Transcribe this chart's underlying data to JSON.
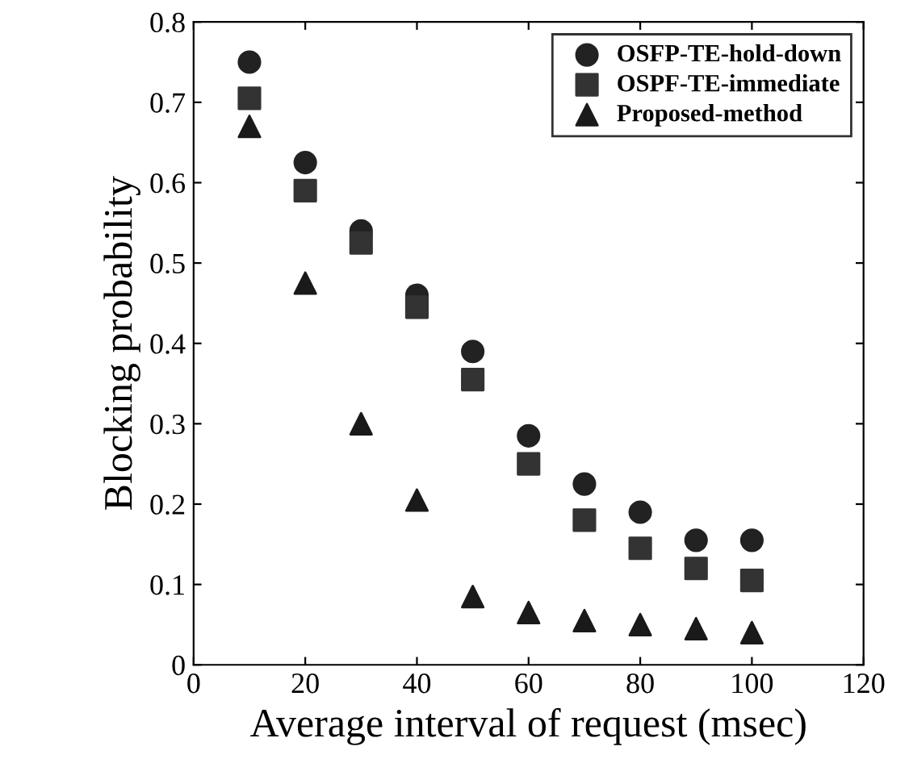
{
  "chart_data": {
    "type": "scatter",
    "xlabel": "Average interval of request (msec)",
    "ylabel": "Blocking probability",
    "x": [
      10,
      20,
      30,
      40,
      50,
      60,
      70,
      80,
      90,
      100
    ],
    "series": [
      {
        "name": "OSFP-TE-hold-down",
        "color": "#222222",
        "marker": "circle",
        "values": [
          0.75,
          0.625,
          0.54,
          0.46,
          0.39,
          0.285,
          0.225,
          0.19,
          0.155,
          0.155
        ]
      },
      {
        "name": "OSPF-TE-immediate",
        "color": "#333333",
        "marker": "square",
        "values": [
          0.705,
          0.59,
          0.525,
          0.445,
          0.355,
          0.25,
          0.18,
          0.145,
          0.12,
          0.105
        ]
      },
      {
        "name": "Proposed-method",
        "color": "#1a1a1a",
        "marker": "triangle",
        "values": [
          0.67,
          0.475,
          0.3,
          0.205,
          0.085,
          0.065,
          0.055,
          0.05,
          0.045,
          0.04
        ]
      }
    ],
    "xlim": [
      0,
      120
    ],
    "xticks": [
      0,
      20,
      40,
      60,
      80,
      100,
      120
    ],
    "ylim": [
      0,
      0.8
    ],
    "yticks": [
      0,
      0.1,
      0.2,
      0.3,
      0.4,
      0.5,
      0.6,
      0.7,
      0.8
    ],
    "grid": false,
    "legend": "top right"
  }
}
